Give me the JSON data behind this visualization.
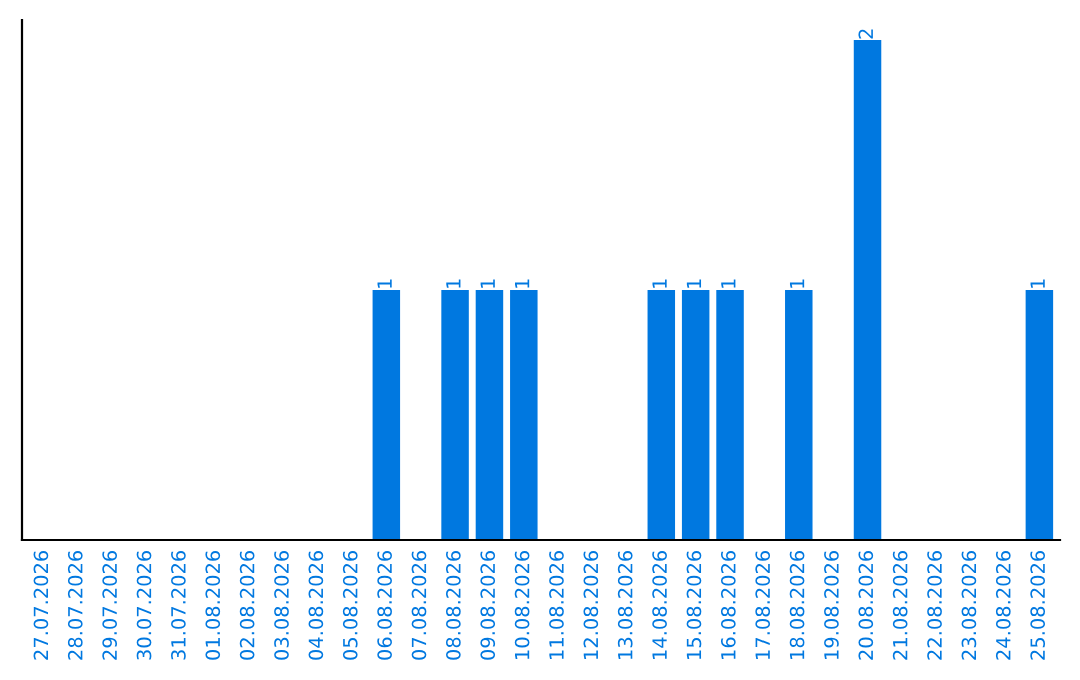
{
  "chart_data": {
    "type": "bar",
    "categories": [
      "27.07.2026",
      "28.07.2026",
      "29.07.2026",
      "30.07.2026",
      "31.07.2026",
      "01.08.2026",
      "02.08.2026",
      "03.08.2026",
      "04.08.2026",
      "05.08.2026",
      "06.08.2026",
      "07.08.2026",
      "08.08.2026",
      "09.08.2026",
      "10.08.2026",
      "11.08.2026",
      "12.08.2026",
      "13.08.2026",
      "14.08.2026",
      "15.08.2026",
      "16.08.2026",
      "17.08.2026",
      "18.08.2026",
      "19.08.2026",
      "20.08.2026",
      "21.08.2026",
      "22.08.2026",
      "23.08.2026",
      "24.08.2026",
      "25.08.2026"
    ],
    "values": [
      0,
      0,
      0,
      0,
      0,
      0,
      0,
      0,
      0,
      0,
      1,
      0,
      1,
      1,
      1,
      0,
      0,
      0,
      1,
      1,
      1,
      0,
      1,
      0,
      2,
      0,
      0,
      0,
      0,
      1
    ],
    "value_labels": [
      null,
      null,
      null,
      null,
      null,
      null,
      null,
      null,
      null,
      null,
      "1",
      null,
      "1",
      "1",
      "1",
      null,
      null,
      null,
      "1",
      "1",
      "1",
      null,
      "1",
      null,
      "2",
      null,
      null,
      null,
      null,
      "1"
    ],
    "color": "#0078e0",
    "tick_labels": "x",
    "grid": false,
    "legend": false
  }
}
